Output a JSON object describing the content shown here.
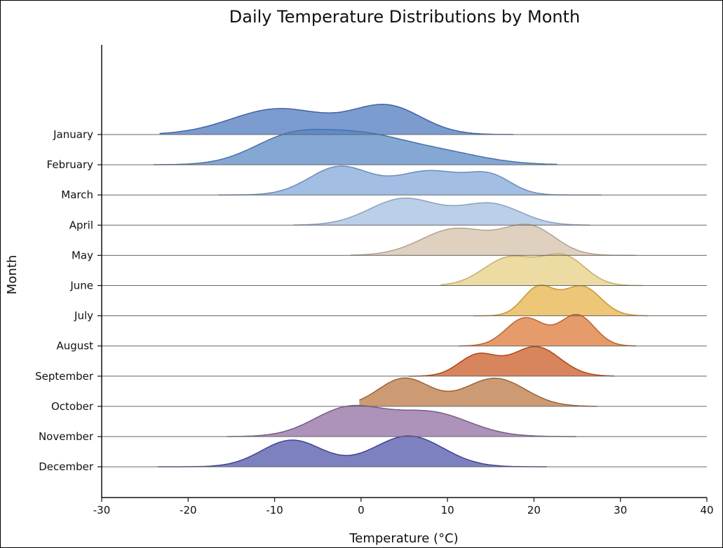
{
  "chart_data": {
    "type": "ridgeline",
    "title": "Daily Temperature Distributions by Month",
    "xlabel": "Temperature (°C)",
    "ylabel": "Month",
    "xlim": [
      -30,
      40
    ],
    "xticks": [
      -30,
      -20,
      -10,
      0,
      10,
      20,
      30,
      40
    ],
    "xtick_labels": [
      "-30",
      "-20",
      "-10",
      "0",
      "10",
      "20",
      "30",
      "40"
    ],
    "grid": false,
    "series": [
      {
        "name": "January",
        "color": "#4a74bd",
        "range": [
          -23.3,
          17.6
        ],
        "peaks": [
          [
            -9.5,
            5.5,
            0.92
          ],
          [
            3,
            4,
            1.0
          ]
        ]
      },
      {
        "name": "February",
        "color": "#5585c4",
        "range": [
          -24,
          22.7
        ],
        "peaks": [
          [
            -8,
            4.5,
            1.0
          ],
          [
            0,
            4.5,
            0.8
          ],
          [
            8,
            5.5,
            0.5
          ]
        ]
      },
      {
        "name": "March",
        "color": "#7ea5d9",
        "range": [
          -16.5,
          27.8
        ],
        "peaks": [
          [
            -2.5,
            3.5,
            1.0
          ],
          [
            8,
            4,
            0.85
          ],
          [
            15,
            2.5,
            0.6
          ]
        ]
      },
      {
        "name": "April",
        "color": "#a1bde0",
        "range": [
          -7.8,
          26.5
        ],
        "peaks": [
          [
            5,
            4,
            0.95
          ],
          [
            15,
            3.5,
            0.75
          ]
        ]
      },
      {
        "name": "May",
        "color": "#d3bea6",
        "range": [
          -1.2,
          31.8
        ],
        "peaks": [
          [
            11,
            4,
            0.95
          ],
          [
            19.5,
            3,
            1.0
          ]
        ]
      },
      {
        "name": "June",
        "color": "#e5cd7f",
        "range": [
          9.2,
          32.6
        ],
        "peaks": [
          [
            17.2,
            3,
            1.0
          ],
          [
            23.5,
            2.5,
            1.0
          ]
        ]
      },
      {
        "name": "July",
        "color": "#e6b042",
        "range": [
          13,
          33.2
        ],
        "peaks": [
          [
            20.5,
            1.8,
            1.0
          ],
          [
            25.5,
            2.2,
            1.05
          ]
        ]
      },
      {
        "name": "August",
        "color": "#dc7432",
        "range": [
          11.3,
          31.8
        ],
        "peaks": [
          [
            19,
            2.2,
            1.0
          ],
          [
            25,
            2,
            1.1
          ]
        ]
      },
      {
        "name": "September",
        "color": "#c9551d",
        "range": [
          5.5,
          29.3
        ],
        "peaks": [
          [
            13.5,
            2.2,
            0.75
          ],
          [
            20.2,
            2.8,
            1.05
          ]
        ]
      },
      {
        "name": "October",
        "color": "#b8743e",
        "range": [
          -0.2,
          27.3
        ],
        "peaks": [
          [
            5,
            3,
            1.0
          ],
          [
            15.5,
            3.5,
            1.0
          ]
        ]
      },
      {
        "name": "November",
        "color": "#8e6aa0",
        "range": [
          -15.5,
          24.9
        ],
        "peaks": [
          [
            -1.5,
            4,
            1.0
          ],
          [
            8,
            4.5,
            0.85
          ]
        ]
      },
      {
        "name": "December",
        "color": "#4c50a8",
        "range": [
          -23.5,
          21.5
        ],
        "peaks": [
          [
            -8,
            3.5,
            0.95
          ],
          [
            5.5,
            4,
            1.1
          ]
        ]
      }
    ]
  }
}
